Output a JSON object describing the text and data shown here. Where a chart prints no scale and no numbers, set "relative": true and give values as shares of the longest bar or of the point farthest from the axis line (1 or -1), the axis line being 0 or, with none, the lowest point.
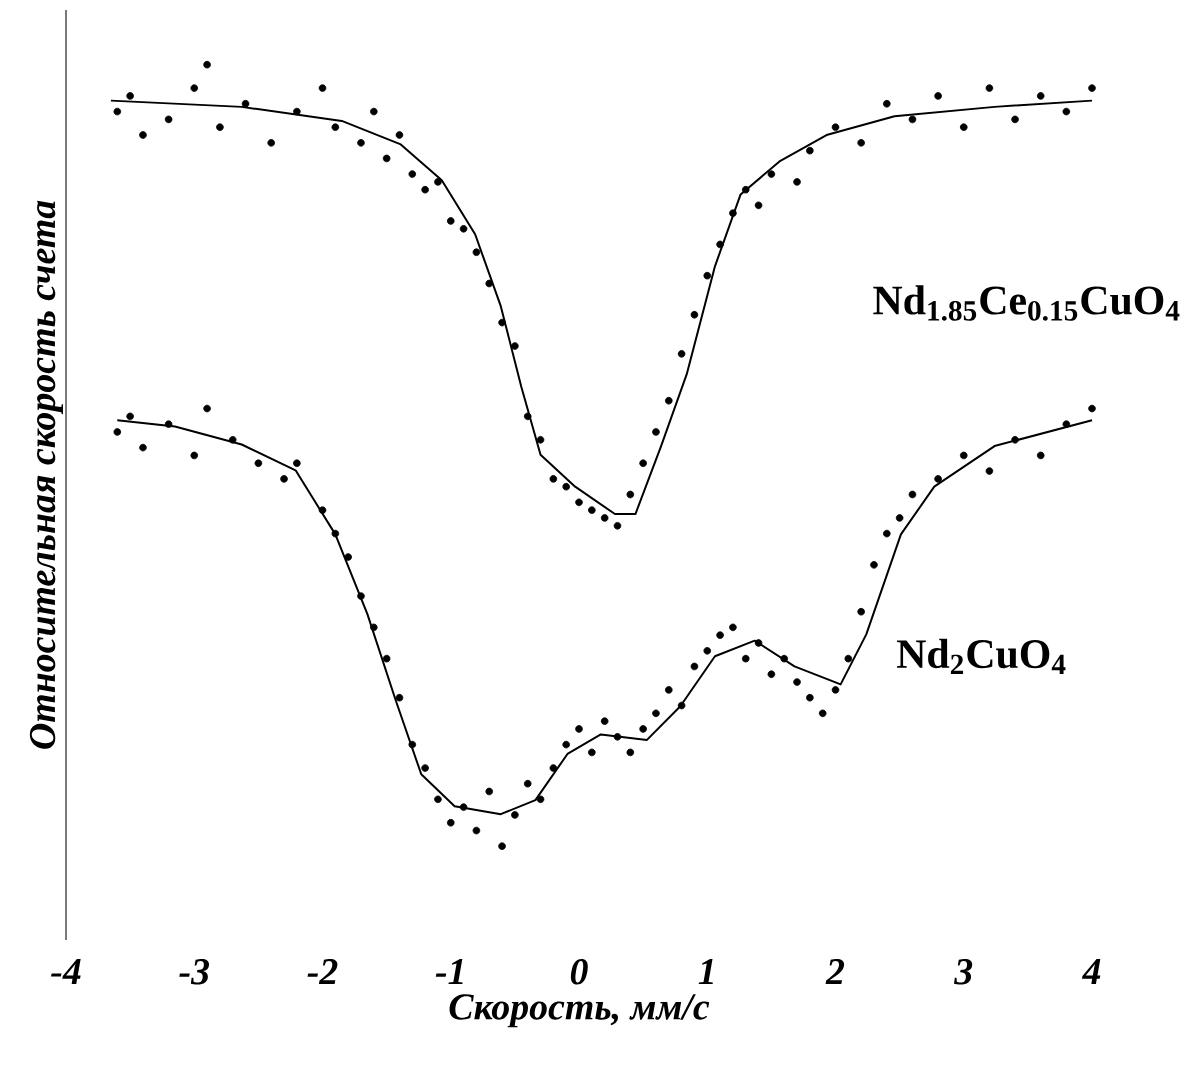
{
  "chart_data": {
    "type": "scatter",
    "relative": true,
    "xlabel": "Скорость, мм/с",
    "ylabel": "Относительная скорость счета",
    "xlim": [
      -4,
      4
    ],
    "xticks": [
      -4,
      -3,
      -2,
      -1,
      0,
      1,
      2,
      3,
      4
    ],
    "series": [
      {
        "name": "Nd$_{1.85}$Ce$_{0.15}$CuO$_{4}$",
        "marker": "circle",
        "color": "#000000",
        "x": [
          -3.6,
          -3.5,
          -3.4,
          -3.2,
          -3.0,
          -2.9,
          -2.8,
          -2.6,
          -2.4,
          -2.2,
          -2.0,
          -1.9,
          -1.7,
          -1.6,
          -1.5,
          -1.4,
          -1.3,
          -1.2,
          -1.1,
          -1.0,
          -0.9,
          -0.8,
          -0.7,
          -0.6,
          -0.5,
          -0.4,
          -0.3,
          -0.2,
          -0.1,
          0.0,
          0.1,
          0.2,
          0.3,
          0.4,
          0.5,
          0.6,
          0.7,
          0.8,
          0.9,
          1.0,
          1.1,
          1.2,
          1.3,
          1.4,
          1.5,
          1.7,
          1.8,
          2.0,
          2.2,
          2.4,
          2.6,
          2.8,
          3.0,
          3.2,
          3.4,
          3.6,
          3.8,
          4.0
        ],
        "values": [
          0.94,
          0.96,
          0.91,
          0.93,
          0.97,
          1.0,
          0.92,
          0.95,
          0.9,
          0.94,
          0.97,
          0.92,
          0.9,
          0.94,
          0.88,
          0.91,
          0.86,
          0.84,
          0.85,
          0.8,
          0.79,
          0.76,
          0.72,
          0.67,
          0.64,
          0.55,
          0.52,
          0.47,
          0.46,
          0.44,
          0.43,
          0.42,
          0.41,
          0.45,
          0.49,
          0.53,
          0.57,
          0.63,
          0.68,
          0.73,
          0.77,
          0.81,
          0.84,
          0.82,
          0.86,
          0.85,
          0.89,
          0.92,
          0.9,
          0.95,
          0.93,
          0.96,
          0.92,
          0.97,
          0.93,
          0.96,
          0.94,
          0.97
        ]
      },
      {
        "type": "line",
        "color": "#000000",
        "x": [
          -3.65,
          -2.63,
          -1.85,
          -1.39,
          -1.07,
          -0.81,
          -0.61,
          -0.45,
          -0.3,
          -0.03,
          0.28,
          0.44,
          0.64,
          0.84,
          1.06,
          1.26,
          1.57,
          1.93,
          2.46,
          3.24,
          4.0
        ],
        "values": [
          0.954,
          0.946,
          0.928,
          0.898,
          0.852,
          0.783,
          0.691,
          0.588,
          0.501,
          0.46,
          0.425,
          0.425,
          0.512,
          0.604,
          0.742,
          0.834,
          0.877,
          0.91,
          0.934,
          0.946,
          0.954
        ]
      },
      {
        "name": "Nd$_{2}$CuO$_{4}$",
        "marker": "circle",
        "color": "#000000",
        "x": [
          -3.6,
          -3.5,
          -3.4,
          -3.2,
          -3.0,
          -2.9,
          -2.7,
          -2.5,
          -2.3,
          -2.2,
          -2.0,
          -1.9,
          -1.8,
          -1.7,
          -1.6,
          -1.5,
          -1.4,
          -1.3,
          -1.2,
          -1.1,
          -1.0,
          -0.9,
          -0.8,
          -0.7,
          -0.6,
          -0.5,
          -0.4,
          -0.3,
          -0.2,
          -0.1,
          0.0,
          0.1,
          0.2,
          0.3,
          0.4,
          0.5,
          0.6,
          0.7,
          0.8,
          0.9,
          1.0,
          1.1,
          1.2,
          1.3,
          1.4,
          1.5,
          1.6,
          1.7,
          1.8,
          1.9,
          2.0,
          2.1,
          2.2,
          2.3,
          2.4,
          2.5,
          2.6,
          2.8,
          3.0,
          3.2,
          3.4,
          3.6,
          3.8,
          4.0
        ],
        "values": [
          0.53,
          0.55,
          0.51,
          0.54,
          0.5,
          0.56,
          0.52,
          0.49,
          0.47,
          0.49,
          0.43,
          0.4,
          0.37,
          0.32,
          0.28,
          0.24,
          0.19,
          0.13,
          0.1,
          0.06,
          0.03,
          0.05,
          0.02,
          0.07,
          0.0,
          0.04,
          0.08,
          0.06,
          0.1,
          0.13,
          0.15,
          0.12,
          0.16,
          0.14,
          0.12,
          0.15,
          0.17,
          0.2,
          0.18,
          0.23,
          0.25,
          0.27,
          0.28,
          0.24,
          0.26,
          0.22,
          0.24,
          0.21,
          0.19,
          0.17,
          0.2,
          0.24,
          0.3,
          0.36,
          0.4,
          0.42,
          0.45,
          0.47,
          0.5,
          0.48,
          0.52,
          0.5,
          0.54,
          0.56
        ]
      },
      {
        "type": "line",
        "color": "#000000",
        "x": [
          -3.6,
          -3.15,
          -2.63,
          -2.21,
          -1.9,
          -1.65,
          -1.43,
          -1.23,
          -0.97,
          -0.61,
          -0.34,
          -0.09,
          0.17,
          0.53,
          0.79,
          1.06,
          1.37,
          1.68,
          2.04,
          2.24,
          2.51,
          2.77,
          3.24,
          4.0
        ],
        "values": [
          0.545,
          0.537,
          0.514,
          0.481,
          0.399,
          0.297,
          0.187,
          0.092,
          0.051,
          0.041,
          0.059,
          0.118,
          0.143,
          0.136,
          0.179,
          0.243,
          0.263,
          0.23,
          0.207,
          0.271,
          0.399,
          0.46,
          0.512,
          0.545
        ]
      }
    ]
  }
}
